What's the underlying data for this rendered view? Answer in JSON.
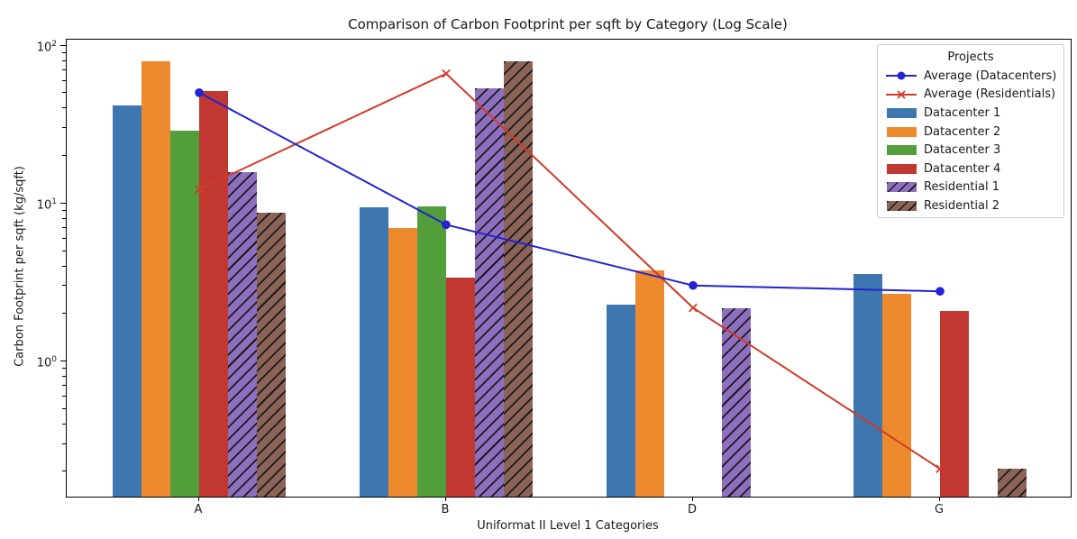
{
  "chart_data": {
    "type": "bar",
    "title": "Comparison of Carbon Footprint per sqft by Category (Log Scale)",
    "xlabel": "Uniformat II Level 1 Categories",
    "ylabel": "Carbon Footprint per sqft (kg/sqft)",
    "categories": [
      "A",
      "B",
      "D",
      "G"
    ],
    "y_scale": "log",
    "ylim": [
      0.14,
      110
    ],
    "ytick_exponents": [
      2,
      1,
      0
    ],
    "grid": false,
    "legend_title": "Projects",
    "legend_position": "upper right",
    "bar_series": [
      {
        "name": "Datacenter 1",
        "color": "#3e76af",
        "hatch": false,
        "values": [
          42,
          9.5,
          2.3,
          3.6
        ]
      },
      {
        "name": "Datacenter 2",
        "color": "#ee8a2e",
        "hatch": false,
        "values": [
          80,
          7.0,
          3.8,
          2.7
        ]
      },
      {
        "name": "Datacenter 3",
        "color": "#519e3b",
        "hatch": false,
        "values": [
          29,
          9.7,
          null,
          null
        ]
      },
      {
        "name": "Datacenter 4",
        "color": "#c03830",
        "hatch": false,
        "values": [
          52,
          3.4,
          null,
          2.1
        ]
      },
      {
        "name": "Residential 1",
        "color": "#8e6fbf",
        "hatch": true,
        "values": [
          16,
          54,
          2.2,
          null
        ]
      },
      {
        "name": "Residential 2",
        "color": "#8b6357",
        "hatch": true,
        "values": [
          8.8,
          80,
          null,
          0.21
        ]
      }
    ],
    "line_series": [
      {
        "name": "Average (Datacenters)",
        "color": "#2323d3",
        "marker": "circle",
        "values": [
          50.8,
          7.4,
          3.05,
          2.8
        ]
      },
      {
        "name": "Average (Residentials)",
        "color": "#d23a2a",
        "marker": "x",
        "values": [
          12.4,
          67,
          2.2,
          0.21
        ]
      }
    ],
    "hatch_color": "#1a1a1a",
    "axis_color": "#000000"
  }
}
